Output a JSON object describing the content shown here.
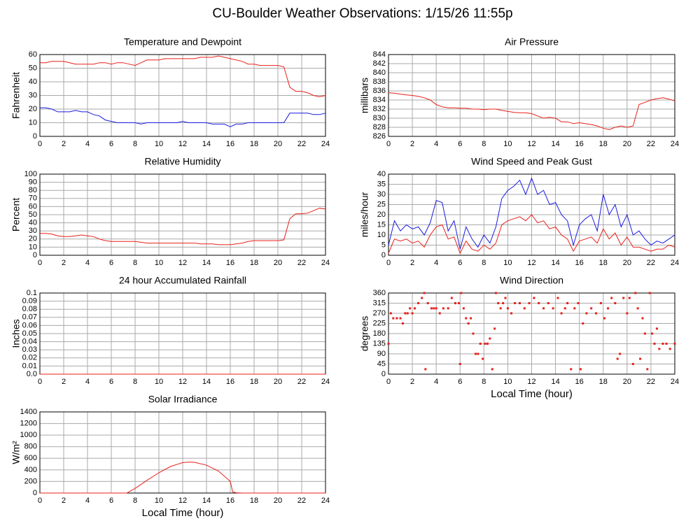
{
  "title": "CU-Boulder Weather Observations: 1/15/26 11:55p",
  "chart_data": [
    {
      "type": "line",
      "title": "Temperature and Dewpoint",
      "ylabel": "Fahrenheit",
      "xlim": [
        0,
        24
      ],
      "xticks": [
        0,
        2,
        4,
        6,
        8,
        10,
        12,
        14,
        16,
        18,
        20,
        22,
        24
      ],
      "ylim": [
        0,
        60
      ],
      "yticks": [
        0,
        10,
        20,
        30,
        40,
        50,
        60
      ],
      "grid": true,
      "x": [
        0,
        0.5,
        1,
        1.5,
        2,
        2.5,
        3,
        3.5,
        4,
        4.5,
        5,
        5.5,
        6,
        6.5,
        7,
        7.5,
        8,
        8.5,
        9,
        9.5,
        10,
        10.5,
        11,
        11.5,
        12,
        12.5,
        13,
        13.5,
        14,
        14.5,
        15,
        15.5,
        16,
        16.5,
        17,
        17.5,
        18,
        18.5,
        19,
        19.5,
        20,
        20.5,
        21,
        21.5,
        22,
        22.5,
        23,
        23.5,
        24
      ],
      "series": [
        {
          "color": "#e8201a",
          "values": [
            54,
            54,
            55,
            55,
            55,
            54,
            53,
            53,
            53,
            53,
            54,
            54,
            53,
            54,
            54,
            53,
            52,
            54,
            56,
            56,
            56,
            57,
            57,
            57,
            57,
            57,
            57,
            58,
            58,
            58,
            59,
            58,
            57,
            56,
            55,
            53,
            53,
            52,
            52,
            52,
            52,
            51,
            36,
            33,
            33,
            32,
            30,
            29,
            30
          ]
        },
        {
          "color": "#1a1ae0",
          "values": [
            21,
            21,
            20,
            18,
            18,
            18,
            19,
            18,
            18,
            16,
            15,
            12,
            11,
            10,
            10,
            10,
            10,
            9,
            10,
            10,
            10,
            10,
            10,
            10,
            11,
            10,
            10,
            10,
            10,
            9,
            9,
            9,
            7,
            9,
            9,
            10,
            10,
            10,
            10,
            10,
            10,
            10,
            17,
            17,
            17,
            17,
            16,
            16,
            17
          ]
        }
      ]
    },
    {
      "type": "line",
      "title": "Air Pressure",
      "ylabel": "millibars",
      "xlim": [
        0,
        24
      ],
      "xticks": [
        0,
        2,
        4,
        6,
        8,
        10,
        12,
        14,
        16,
        18,
        20,
        22,
        24
      ],
      "ylim": [
        826,
        844
      ],
      "yticks": [
        826,
        828,
        830,
        832,
        834,
        836,
        838,
        840,
        842,
        844
      ],
      "grid": true,
      "x": [
        0,
        0.5,
        1,
        1.5,
        2,
        2.5,
        3,
        3.5,
        4,
        4.5,
        5,
        5.5,
        6,
        6.5,
        7,
        7.5,
        8,
        8.5,
        9,
        9.5,
        10,
        10.5,
        11,
        11.5,
        12,
        12.5,
        13,
        13.5,
        14,
        14.5,
        15,
        15.5,
        16,
        16.5,
        17,
        17.5,
        18,
        18.5,
        19,
        19.5,
        20,
        20.5,
        21,
        21.5,
        22,
        22.5,
        23,
        23.5,
        24
      ],
      "series": [
        {
          "color": "#e8201a",
          "values": [
            835.6,
            835.5,
            835.3,
            835.1,
            835,
            834.8,
            834.5,
            834,
            833,
            832.5,
            832.3,
            832.3,
            832.2,
            832.2,
            832,
            832,
            831.9,
            832,
            832,
            831.7,
            831.5,
            831.3,
            831.2,
            831.2,
            831,
            830.5,
            830,
            830.2,
            830,
            829.2,
            829.2,
            828.8,
            829,
            828.8,
            828.6,
            828.3,
            827.8,
            827.5,
            828,
            828.3,
            828,
            828.3,
            833,
            833.5,
            834,
            834.3,
            834.5,
            834.2,
            833.8
          ]
        }
      ]
    },
    {
      "type": "line",
      "title": "Relative Humidity",
      "ylabel": "Percent",
      "xlim": [
        0,
        24
      ],
      "xticks": [
        0,
        2,
        4,
        6,
        8,
        10,
        12,
        14,
        16,
        18,
        20,
        22,
        24
      ],
      "ylim": [
        0,
        100
      ],
      "yticks": [
        0,
        10,
        20,
        30,
        40,
        50,
        60,
        70,
        80,
        90,
        100
      ],
      "grid": true,
      "x": [
        0,
        0.5,
        1,
        1.5,
        2,
        2.5,
        3,
        3.5,
        4,
        4.5,
        5,
        5.5,
        6,
        6.5,
        7,
        7.5,
        8,
        8.5,
        9,
        9.5,
        10,
        10.5,
        11,
        11.5,
        12,
        12.5,
        13,
        13.5,
        14,
        14.5,
        15,
        15.5,
        16,
        16.5,
        17,
        17.5,
        18,
        18.5,
        19,
        19.5,
        20,
        20.5,
        21,
        21.5,
        22,
        22.5,
        23,
        23.5,
        24
      ],
      "series": [
        {
          "color": "#e8201a",
          "values": [
            27,
            27,
            26,
            24,
            23,
            23,
            24,
            25,
            24,
            23,
            20,
            18,
            17,
            17,
            17,
            17,
            17,
            16,
            15,
            15,
            15,
            15,
            15,
            15,
            15,
            15,
            15,
            14,
            14,
            14,
            13,
            13,
            13,
            14,
            15,
            17,
            18,
            18,
            18,
            18,
            18,
            19,
            45,
            51,
            51,
            52,
            55,
            58,
            57
          ]
        }
      ]
    },
    {
      "type": "line",
      "title": "Wind Speed and Peak Gust",
      "ylabel": "miles/hour",
      "xlim": [
        0,
        24
      ],
      "xticks": [
        0,
        2,
        4,
        6,
        8,
        10,
        12,
        14,
        16,
        18,
        20,
        22,
        24
      ],
      "ylim": [
        0,
        40
      ],
      "yticks": [
        0,
        5,
        10,
        15,
        20,
        25,
        30,
        35,
        40
      ],
      "grid": true,
      "x": [
        0,
        0.5,
        1,
        1.5,
        2,
        2.5,
        3,
        3.5,
        4,
        4.5,
        5,
        5.5,
        6,
        6.5,
        7,
        7.5,
        8,
        8.5,
        9,
        9.5,
        10,
        10.5,
        11,
        11.5,
        12,
        12.5,
        13,
        13.5,
        14,
        14.5,
        15,
        15.5,
        16,
        16.5,
        17,
        17.5,
        18,
        18.5,
        19,
        19.5,
        20,
        20.5,
        21,
        21.5,
        22,
        22.5,
        23,
        23.5,
        24
      ],
      "series": [
        {
          "color": "#1a1ae0",
          "values": [
            5,
            17,
            12,
            15,
            13,
            14,
            10,
            16,
            27,
            26,
            12,
            17,
            3,
            14,
            8,
            4,
            10,
            6,
            14,
            28,
            32,
            34,
            37,
            30,
            38,
            30,
            32,
            25,
            26,
            20,
            17,
            5,
            15,
            18,
            20,
            12,
            30,
            20,
            25,
            14,
            20,
            10,
            12,
            8,
            5,
            7,
            6,
            8,
            10
          ]
        },
        {
          "color": "#e8201a",
          "values": [
            1,
            8,
            7,
            8,
            6,
            7,
            4,
            10,
            14,
            15,
            8,
            9,
            1,
            7,
            3,
            2,
            5,
            3,
            6,
            15,
            17,
            18,
            19,
            17,
            20,
            16,
            17,
            13,
            14,
            10,
            8,
            2,
            7,
            8,
            9,
            6,
            13,
            8,
            11,
            5,
            9,
            4,
            4,
            3,
            2,
            3,
            3,
            5,
            4
          ]
        }
      ]
    },
    {
      "type": "line",
      "title": "24 hour Accumulated Rainfall",
      "ylabel": "Inches",
      "xlim": [
        0,
        24
      ],
      "xticks": [
        0,
        2,
        4,
        6,
        8,
        10,
        12,
        14,
        16,
        18,
        20,
        22,
        24
      ],
      "ylim": [
        0,
        0.1
      ],
      "yticks": [
        {
          "value": 0,
          "label": "0.0"
        },
        0.01,
        0.02,
        0.03,
        0.04,
        0.05,
        0.06,
        0.07,
        0.08,
        0.09,
        0.1
      ],
      "grid": true,
      "x": [
        0,
        24
      ],
      "series": [
        {
          "color": "#e8201a",
          "values": [
            0,
            0
          ]
        }
      ]
    },
    {
      "type": "scatter",
      "title": "Wind Direction",
      "ylabel": "degrees",
      "xlabel": "Local Time (hour)",
      "xlim": [
        0,
        24
      ],
      "xticks": [
        0,
        2,
        4,
        6,
        8,
        10,
        12,
        14,
        16,
        18,
        20,
        22,
        24
      ],
      "ylim": [
        0,
        360
      ],
      "yticks": [
        0,
        45,
        90,
        135,
        180,
        225,
        270,
        315,
        360
      ],
      "grid": true,
      "x": [
        0,
        0.2,
        0.4,
        0.7,
        1,
        1.2,
        1.4,
        1.6,
        1.8,
        2,
        2.2,
        2.5,
        2.8,
        3,
        3.1,
        3.3,
        3.6,
        3.8,
        4,
        4.3,
        4.6,
        5,
        5.3,
        5.6,
        5.9,
        6,
        6.1,
        6.3,
        6.5,
        6.7,
        6.9,
        7.1,
        7.3,
        7.5,
        7.7,
        7.9,
        8.1,
        8.3,
        8.5,
        8.7,
        8.9,
        9,
        9.2,
        9.4,
        9.6,
        9.8,
        10,
        10.3,
        10.6,
        11,
        11.4,
        11.8,
        12.2,
        12.6,
        13,
        13.4,
        13.8,
        14.2,
        14.5,
        14.8,
        15,
        15.3,
        15.6,
        15.9,
        16.1,
        16.3,
        16.6,
        17,
        17.4,
        17.8,
        18.1,
        18.4,
        18.7,
        19,
        19.2,
        19.4,
        19.7,
        20,
        20.2,
        20.5,
        20.7,
        20.9,
        21.1,
        21.3,
        21.5,
        21.7,
        21.9,
        22.1,
        22.3,
        22.5,
        22.7,
        23,
        23.3,
        23.6,
        24
      ],
      "series": [
        {
          "color": "#e8201a",
          "values": [
            135,
            270,
            248,
            248,
            248,
            225,
            270,
            270,
            292,
            270,
            292,
            315,
            338,
            360,
            22,
            315,
            292,
            292,
            292,
            270,
            292,
            292,
            338,
            315,
            315,
            45,
            360,
            292,
            248,
            225,
            248,
            180,
            90,
            90,
            135,
            68,
            135,
            135,
            158,
            22,
            202,
            360,
            315,
            292,
            315,
            338,
            292,
            270,
            315,
            315,
            292,
            315,
            338,
            315,
            292,
            315,
            292,
            338,
            270,
            292,
            315,
            22,
            292,
            315,
            22,
            225,
            270,
            292,
            270,
            315,
            248,
            292,
            338,
            315,
            68,
            90,
            338,
            270,
            338,
            45,
            360,
            292,
            68,
            248,
            180,
            22,
            360,
            180,
            135,
            202,
            112,
            135,
            135,
            112,
            135
          ]
        }
      ]
    },
    {
      "type": "line",
      "title": "Solar Irradiance",
      "ylabel": "W/m²",
      "xlabel": "Local Time (hour)",
      "xlim": [
        0,
        24
      ],
      "xticks": [
        0,
        2,
        4,
        6,
        8,
        10,
        12,
        14,
        16,
        18,
        20,
        22,
        24
      ],
      "ylim": [
        0,
        1400
      ],
      "yticks": [
        0,
        200,
        400,
        600,
        800,
        1000,
        1200,
        1400
      ],
      "grid": true,
      "x": [
        0,
        7.3,
        8,
        9,
        10,
        11,
        12,
        12.5,
        13,
        14,
        15,
        16,
        16.2,
        16.5,
        17,
        24
      ],
      "series": [
        {
          "color": "#e8201a",
          "values": [
            0,
            0,
            80,
            220,
            350,
            460,
            525,
            535,
            530,
            480,
            380,
            200,
            20,
            5,
            0,
            0
          ]
        }
      ]
    }
  ]
}
